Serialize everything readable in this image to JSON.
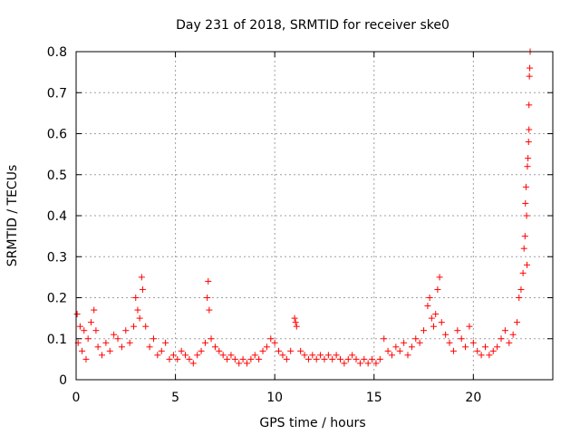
{
  "chart_data": {
    "type": "scatter",
    "title": "Day 231 of 2018, SRMTID for receiver ske0",
    "xlabel": "GPS time / hours",
    "ylabel": "SRMTID / TECUs",
    "xlim": [
      0,
      24
    ],
    "ylim": [
      0,
      0.8
    ],
    "xticks": [
      0,
      5,
      10,
      15,
      20
    ],
    "yticks": [
      0,
      0.1,
      0.2,
      0.3,
      0.4,
      0.5,
      0.6,
      0.7,
      0.8
    ],
    "grid": true,
    "marker": "+",
    "colors": {
      "points": "#ff0000",
      "grid": "#a0a0a0",
      "axis": "#000000"
    },
    "series": [
      {
        "name": "ske0",
        "points": [
          [
            0.05,
            0.16
          ],
          [
            0.1,
            0.09
          ],
          [
            0.2,
            0.13
          ],
          [
            0.3,
            0.07
          ],
          [
            0.4,
            0.12
          ],
          [
            0.5,
            0.05
          ],
          [
            0.6,
            0.1
          ],
          [
            0.75,
            0.14
          ],
          [
            0.9,
            0.17
          ],
          [
            1.0,
            0.12
          ],
          [
            1.1,
            0.08
          ],
          [
            1.3,
            0.06
          ],
          [
            1.5,
            0.09
          ],
          [
            1.7,
            0.07
          ],
          [
            1.9,
            0.11
          ],
          [
            2.1,
            0.1
          ],
          [
            2.3,
            0.08
          ],
          [
            2.5,
            0.12
          ],
          [
            2.7,
            0.09
          ],
          [
            2.9,
            0.13
          ],
          [
            3.0,
            0.2
          ],
          [
            3.1,
            0.17
          ],
          [
            3.2,
            0.15
          ],
          [
            3.3,
            0.25
          ],
          [
            3.35,
            0.22
          ],
          [
            3.5,
            0.13
          ],
          [
            3.7,
            0.08
          ],
          [
            3.9,
            0.1
          ],
          [
            4.1,
            0.06
          ],
          [
            4.3,
            0.07
          ],
          [
            4.5,
            0.09
          ],
          [
            4.7,
            0.05
          ],
          [
            4.9,
            0.06
          ],
          [
            5.1,
            0.05
          ],
          [
            5.3,
            0.07
          ],
          [
            5.5,
            0.06
          ],
          [
            5.7,
            0.05
          ],
          [
            5.9,
            0.04
          ],
          [
            6.1,
            0.06
          ],
          [
            6.3,
            0.07
          ],
          [
            6.5,
            0.09
          ],
          [
            6.6,
            0.2
          ],
          [
            6.65,
            0.24
          ],
          [
            6.7,
            0.17
          ],
          [
            6.8,
            0.1
          ],
          [
            7.0,
            0.08
          ],
          [
            7.2,
            0.07
          ],
          [
            7.4,
            0.06
          ],
          [
            7.6,
            0.05
          ],
          [
            7.8,
            0.06
          ],
          [
            8.0,
            0.05
          ],
          [
            8.2,
            0.04
          ],
          [
            8.4,
            0.05
          ],
          [
            8.6,
            0.04
          ],
          [
            8.8,
            0.05
          ],
          [
            9.0,
            0.06
          ],
          [
            9.2,
            0.05
          ],
          [
            9.4,
            0.07
          ],
          [
            9.6,
            0.08
          ],
          [
            9.8,
            0.1
          ],
          [
            10.0,
            0.09
          ],
          [
            10.2,
            0.07
          ],
          [
            10.4,
            0.06
          ],
          [
            10.6,
            0.05
          ],
          [
            10.8,
            0.07
          ],
          [
            11.0,
            0.15
          ],
          [
            11.05,
            0.14
          ],
          [
            11.1,
            0.13
          ],
          [
            11.3,
            0.07
          ],
          [
            11.5,
            0.06
          ],
          [
            11.7,
            0.05
          ],
          [
            11.9,
            0.06
          ],
          [
            12.1,
            0.05
          ],
          [
            12.3,
            0.06
          ],
          [
            12.5,
            0.05
          ],
          [
            12.7,
            0.06
          ],
          [
            12.9,
            0.05
          ],
          [
            13.1,
            0.06
          ],
          [
            13.3,
            0.05
          ],
          [
            13.5,
            0.04
          ],
          [
            13.7,
            0.05
          ],
          [
            13.9,
            0.06
          ],
          [
            14.1,
            0.05
          ],
          [
            14.3,
            0.04
          ],
          [
            14.5,
            0.05
          ],
          [
            14.7,
            0.04
          ],
          [
            14.9,
            0.05
          ],
          [
            15.1,
            0.04
          ],
          [
            15.3,
            0.05
          ],
          [
            15.5,
            0.1
          ],
          [
            15.7,
            0.07
          ],
          [
            15.9,
            0.06
          ],
          [
            16.1,
            0.08
          ],
          [
            16.3,
            0.07
          ],
          [
            16.5,
            0.09
          ],
          [
            16.7,
            0.06
          ],
          [
            16.9,
            0.08
          ],
          [
            17.1,
            0.1
          ],
          [
            17.3,
            0.09
          ],
          [
            17.5,
            0.12
          ],
          [
            17.7,
            0.18
          ],
          [
            17.8,
            0.2
          ],
          [
            17.9,
            0.15
          ],
          [
            18.0,
            0.13
          ],
          [
            18.1,
            0.16
          ],
          [
            18.2,
            0.22
          ],
          [
            18.3,
            0.25
          ],
          [
            18.4,
            0.14
          ],
          [
            18.6,
            0.11
          ],
          [
            18.8,
            0.09
          ],
          [
            19.0,
            0.07
          ],
          [
            19.2,
            0.12
          ],
          [
            19.4,
            0.1
          ],
          [
            19.6,
            0.08
          ],
          [
            19.8,
            0.13
          ],
          [
            20.0,
            0.09
          ],
          [
            20.2,
            0.07
          ],
          [
            20.4,
            0.06
          ],
          [
            20.6,
            0.08
          ],
          [
            20.8,
            0.06
          ],
          [
            21.0,
            0.07
          ],
          [
            21.2,
            0.08
          ],
          [
            21.4,
            0.1
          ],
          [
            21.6,
            0.12
          ],
          [
            21.8,
            0.09
          ],
          [
            22.0,
            0.11
          ],
          [
            22.2,
            0.14
          ],
          [
            22.3,
            0.2
          ],
          [
            22.4,
            0.22
          ],
          [
            22.5,
            0.26
          ],
          [
            22.55,
            0.32
          ],
          [
            22.6,
            0.35
          ],
          [
            22.62,
            0.43
          ],
          [
            22.65,
            0.47
          ],
          [
            22.68,
            0.4
          ],
          [
            22.7,
            0.28
          ],
          [
            22.72,
            0.52
          ],
          [
            22.75,
            0.54
          ],
          [
            22.78,
            0.58
          ],
          [
            22.8,
            0.61
          ],
          [
            22.8,
            0.67
          ],
          [
            22.82,
            0.74
          ],
          [
            22.84,
            0.76
          ],
          [
            22.86,
            0.8
          ]
        ]
      }
    ]
  }
}
